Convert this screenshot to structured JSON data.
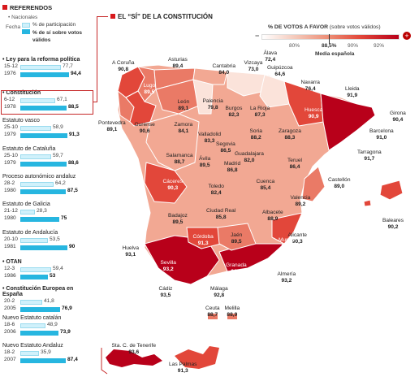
{
  "sidebar": {
    "header": "REFERENDOS",
    "legend": {
      "nacionales": "Nacionales",
      "fecha": "Fecha",
      "participacion": "% de participación",
      "votos_validos": "% de sí sobre votos válidos"
    },
    "referendums": [
      {
        "title": "Ley para la reforma política",
        "date": "15-12",
        "year": "1976",
        "participacion": "77,7",
        "si": "94,4",
        "p_num": 77.7,
        "s_num": 94.4,
        "bold": true
      },
      {
        "title": "Constitución",
        "date": "6-12",
        "year": "1978",
        "participacion": "67,1",
        "si": "88,5",
        "p_num": 67.1,
        "s_num": 88.5,
        "bold": true
      },
      {
        "title": "Estatuto vasco",
        "date": "25-10",
        "year": "1979",
        "participacion": "58,9",
        "si": "91,3",
        "p_num": 58.9,
        "s_num": 91.3,
        "bold": false
      },
      {
        "title": "Estatuto de Cataluña",
        "date": "25-10",
        "year": "1979",
        "participacion": "59,7",
        "si": "88,6",
        "p_num": 59.7,
        "s_num": 88.6,
        "bold": false
      },
      {
        "title": "Proceso autonómico andaluz",
        "date": "28-2",
        "year": "1980",
        "participacion": "64,2",
        "si": "87,5",
        "p_num": 64.2,
        "s_num": 87.5,
        "bold": false
      },
      {
        "title": "Estatuto de Galicia",
        "date": "21-12",
        "year": "1980",
        "participacion": "28,3",
        "si": "75",
        "p_num": 28.3,
        "s_num": 75,
        "bold": false
      },
      {
        "title": "Estatuto de Andalucía",
        "date": "20-10",
        "year": "1981",
        "participacion": "53,5",
        "si": "90",
        "p_num": 53.5,
        "s_num": 90,
        "bold": false
      },
      {
        "title": "OTAN",
        "date": "12-3",
        "year": "1986",
        "participacion": "59,4",
        "si": "53",
        "p_num": 59.4,
        "s_num": 53,
        "bold": true
      },
      {
        "title": "Constitución Europea en España",
        "date": "20-2",
        "year": "2005",
        "participacion": "41,8",
        "si": "76,9",
        "p_num": 41.8,
        "s_num": 76.9,
        "bold": true
      },
      {
        "title": "Nuevo Estatuto catalán",
        "date": "18-6",
        "year": "2006",
        "participacion": "48,9",
        "si": "73,9",
        "p_num": 48.9,
        "s_num": 73.9,
        "bold": false
      },
      {
        "title": "Nuevo Estatuto Andaluz",
        "date": "18-2",
        "year": "2007",
        "participacion": "35,9",
        "si": "87,4",
        "p_num": 35.9,
        "s_num": 87.4,
        "bold": false
      }
    ]
  },
  "map": {
    "title": "EL “SÍ” DE LA CONSTITUCIÓN",
    "scale_title": "% DE VOTOS A FAVOR",
    "scale_subtitle": "(sobre votos válidos)",
    "scale_ticks": [
      "80%",
      "88,5%",
      "90%",
      "92%"
    ],
    "media": "Media española",
    "colors": {
      "low": "#fbe3da",
      "mid1": "#f2a893",
      "mid2": "#ea7a66",
      "high": "#e2473a",
      "top": "#b8001a"
    },
    "provinces": [
      {
        "name": "A Coruña",
        "value": "90,8"
      },
      {
        "name": "Lugo",
        "value": "89,5"
      },
      {
        "name": "Pontevedra",
        "value": "89,1"
      },
      {
        "name": "Ourense",
        "value": "90,6"
      },
      {
        "name": "Asturias",
        "value": "89,4"
      },
      {
        "name": "Cantabria",
        "value": "84,0"
      },
      {
        "name": "Vizcaya",
        "value": "73,0"
      },
      {
        "name": "Guipúzcoa",
        "value": "64,6"
      },
      {
        "name": "Álava",
        "value": "72,4"
      },
      {
        "name": "Navarra",
        "value": "76,4"
      },
      {
        "name": "Huesca",
        "value": "90,9"
      },
      {
        "name": "Lleida",
        "value": "91,9"
      },
      {
        "name": "Girona",
        "value": "90,4"
      },
      {
        "name": "Barcelona",
        "value": "91,0"
      },
      {
        "name": "Tarragona",
        "value": "91,7"
      },
      {
        "name": "León",
        "value": "89,1"
      },
      {
        "name": "Palencia",
        "value": "79,8"
      },
      {
        "name": "Burgos",
        "value": "82,3"
      },
      {
        "name": "La Rioja",
        "value": "87,3"
      },
      {
        "name": "Zamora",
        "value": "84,1"
      },
      {
        "name": "Valladolid",
        "value": "83,3"
      },
      {
        "name": "Soria",
        "value": "88,2"
      },
      {
        "name": "Zaragoza",
        "value": "88,3"
      },
      {
        "name": "Segovia",
        "value": "86,5"
      },
      {
        "name": "Salamanca",
        "value": "88,7"
      },
      {
        "name": "Ávila",
        "value": "89,5"
      },
      {
        "name": "Madrid",
        "value": "86,8"
      },
      {
        "name": "Guadalajara",
        "value": "82,0"
      },
      {
        "name": "Teruel",
        "value": "86,4"
      },
      {
        "name": "Castellón",
        "value": "89,0"
      },
      {
        "name": "Cáceres",
        "value": "90,3"
      },
      {
        "name": "Toledo",
        "value": "82,4"
      },
      {
        "name": "Cuenca",
        "value": "85,4"
      },
      {
        "name": "Valencia",
        "value": "89,2"
      },
      {
        "name": "Badajoz",
        "value": "89,5"
      },
      {
        "name": "Ciudad Real",
        "value": "85,8"
      },
      {
        "name": "Albacete",
        "value": "88,9"
      },
      {
        "name": "Alicante",
        "value": "90,3"
      },
      {
        "name": "Baleares",
        "value": "90,2"
      },
      {
        "name": "Huelva",
        "value": "93,1"
      },
      {
        "name": "Córdoba",
        "value": "91,3"
      },
      {
        "name": "Jaén",
        "value": "89,5"
      },
      {
        "name": "Murcia",
        "value": "91,3"
      },
      {
        "name": "Sevilla",
        "value": "93,2"
      },
      {
        "name": "Granada",
        "value": "92,1"
      },
      {
        "name": "Almería",
        "value": "93,2"
      },
      {
        "name": "Cádiz",
        "value": "93,5"
      },
      {
        "name": "Málaga",
        "value": "92,8"
      },
      {
        "name": "Ceuta",
        "value": "88,7"
      },
      {
        "name": "Melilla",
        "value": "88,9"
      },
      {
        "name": "Sta. C. de Tenerife",
        "value": "93,6"
      },
      {
        "name": "Las Palmas",
        "value": "91,3"
      }
    ]
  }
}
